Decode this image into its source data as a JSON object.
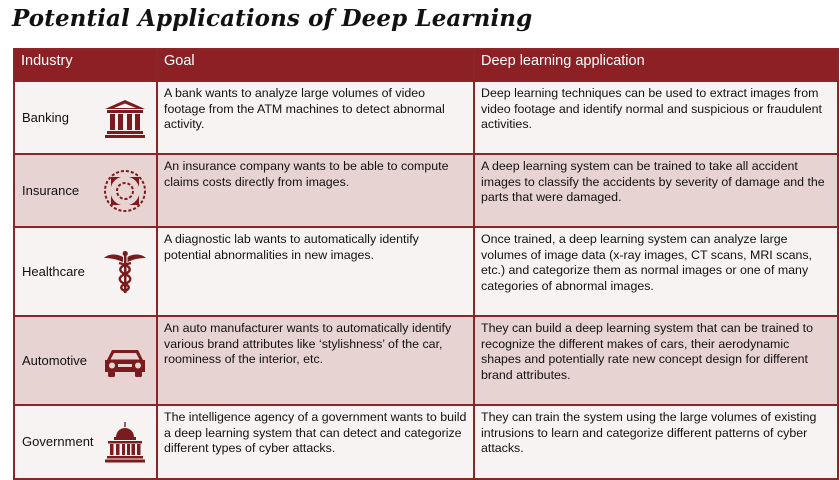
{
  "title": "Potential Applications of Deep Learning",
  "table": {
    "headers": {
      "industry": "Industry",
      "goal": "Goal",
      "application": "Deep learning application"
    },
    "rows": [
      {
        "industry": "Banking",
        "icon": "bank-icon",
        "goal": "A bank wants to analyze large volumes of video footage from the ATM machines to detect abnormal activity.",
        "application": "Deep learning techniques can be used to extract images from video footage and identify normal and suspicious or fraudulent activities."
      },
      {
        "industry": "Insurance",
        "icon": "life-ring-icon",
        "goal": "An insurance company wants to be able to compute claims costs directly from images.",
        "application": "A deep learning system can be trained to take all accident images to classify the accidents by severity of damage and the parts that were damaged."
      },
      {
        "industry": "Healthcare",
        "icon": "caduceus-icon",
        "goal": "A diagnostic lab wants to automatically identify potential abnormalities in new images.",
        "application": "Once trained, a deep learning system can analyze large volumes of image data (x-ray images, CT scans, MRI scans, etc.) and categorize them as normal images or one of many categories of abnormal images."
      },
      {
        "industry": "Automotive",
        "icon": "car-icon",
        "goal": "An auto manufacturer wants to automatically identify various brand attributes like ‘stylishness’ of the car, roominess of the interior, etc.",
        "application": "They can build a deep learning system that can be trained to recognize the different makes of cars, their aerodynamic shapes and potentially rate new concept design for different brand attributes."
      },
      {
        "industry": "Government",
        "icon": "capitol-icon",
        "goal": "The intelligence agency of a government wants to build a deep learning system that can detect and categorize different types of cyber attacks.",
        "application": "They can train the system using the large volumes of existing intrusions to learn and categorize different patterns of cyber attacks."
      }
    ]
  },
  "colors": {
    "header_bg": "#8c2024",
    "border": "#8a2628",
    "icon": "#7a1c1e",
    "row_light": "#f7f3f3",
    "row_dark": "#e8d3d3"
  }
}
